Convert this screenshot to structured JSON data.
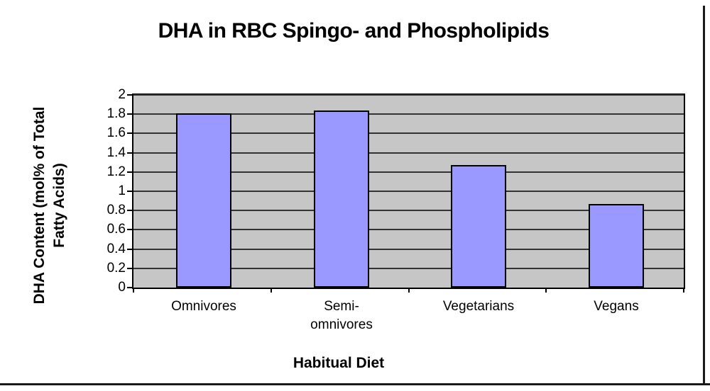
{
  "page": {
    "background": "#ffffff"
  },
  "chart_data": {
    "type": "bar",
    "title": "DHA in RBC Spingo- and Phospholipids",
    "xlabel": "Habitual Diet",
    "ylabel": "DHA Content (mol% of Total Fatty Acids)",
    "ylabel_lines": [
      "DHA Content (mol% of Total",
      "Fatty Acids)"
    ],
    "categories": [
      "Omnivores",
      "Semi-omnivores",
      "Vegetarians",
      "Vegans"
    ],
    "category_label_lines": [
      [
        "Omnivores"
      ],
      [
        "Semi-",
        "omnivores"
      ],
      [
        "Vegetarians"
      ],
      [
        "Vegans"
      ]
    ],
    "values": [
      1.81,
      1.84,
      1.27,
      0.87
    ],
    "ylim": [
      0,
      2
    ],
    "ytick_step": 0.2,
    "ytick_labels": [
      "0",
      "0.2",
      "0.4",
      "0.6",
      "0.8",
      "1",
      "1.2",
      "1.4",
      "1.6",
      "1.8",
      "2"
    ],
    "grid": "on",
    "legend": "none",
    "colors": {
      "bar_fill": "#9999ff",
      "bar_border": "#000000",
      "plot_background": "#c6c6c6",
      "gridline": "#333333",
      "axis": "#000000",
      "text": "#000000",
      "frame_line": "#1a1a1a"
    }
  }
}
